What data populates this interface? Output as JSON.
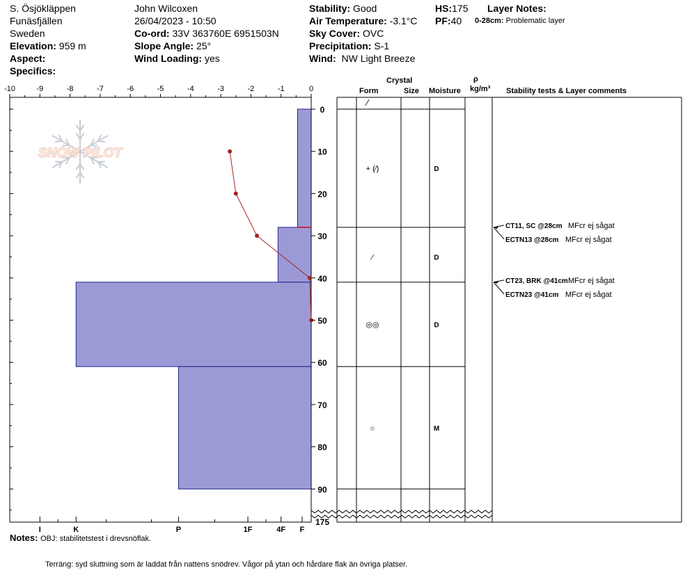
{
  "header": {
    "location": "S. Ösjökläppen",
    "area": "Funäsfjällen",
    "country": "Sweden",
    "elevation_label": "Elevation:",
    "elevation_value": "959 m",
    "aspect_label": "Aspect:",
    "specifics_label": "Specifics:",
    "observer": "John Wilcoxen",
    "datetime": "26/04/2023 - 10:50",
    "coord_label": "Co-ord:",
    "coord_value": "33V 363760E 6951503N",
    "slope_label": "Slope Angle:",
    "slope_value": "25°",
    "wind_loading_label": "Wind Loading:",
    "wind_loading_value": "yes",
    "stability_label": "Stability:",
    "stability_value": "Good",
    "air_temp_label": "Air Temperature:",
    "air_temp_value": "-3.1°C",
    "sky_label": "Sky Cover:",
    "sky_value": "OVC",
    "precip_label": "Precipitation:",
    "precip_value": "S-1",
    "wind_label": "Wind:",
    "wind_value": "NW Light Breeze",
    "hs_label": "HS:",
    "hs_value": "175",
    "pf_label": "PF:",
    "pf_value": "40",
    "layer_notes_label": "Layer Notes:",
    "layer_note_range": "0-28cm:",
    "layer_note_text": "Problematic layer"
  },
  "logo_text": "SNOW PILOT",
  "columns": {
    "crystal": "Crystal",
    "form": "Form",
    "size": "Size",
    "moisture": "Moisture",
    "rho": "ρ",
    "density_unit": "kg/m³",
    "stability": "Stability tests & Layer comments"
  },
  "notes": {
    "label": "Notes:",
    "line1": "OBJ: stabilitetstest i drevsnöflak.",
    "line2": "Terräng: syd sluttning som är laddat från nattens snödrev. Vågor på ytan och hårdare flak än övriga platser."
  },
  "chart_data": {
    "type": "snow-profile",
    "temp_axis": {
      "min": -10,
      "max": 0,
      "ticks": [
        "-10",
        "-9",
        "-8",
        "-7",
        "-6",
        "-5",
        "-4",
        "-3",
        "-2",
        "-1",
        "0"
      ]
    },
    "depth_axis": {
      "min": 0,
      "max": 90,
      "ticks": [
        "0",
        "10",
        "20",
        "30",
        "40",
        "50",
        "60",
        "70",
        "80",
        "90"
      ],
      "break_label": "175"
    },
    "hardness_axis": {
      "labels": [
        "I",
        "K",
        "P",
        "1F",
        "4F",
        "F"
      ],
      "values": [
        9,
        7.8,
        4.4,
        2.1,
        1.0,
        0.3
      ]
    },
    "temperature_profile": [
      {
        "depth": 10,
        "temp": -2.7
      },
      {
        "depth": 20,
        "temp": -2.5
      },
      {
        "depth": 30,
        "temp": -1.8
      },
      {
        "depth": 40,
        "temp": -0.05
      },
      {
        "depth": 50,
        "temp": 0.0
      }
    ],
    "hardness_layers": [
      {
        "top": 0,
        "bottom": 28,
        "hardness": 0.45
      },
      {
        "top": 28,
        "bottom": 41,
        "hardness": 1.1
      },
      {
        "top": 41,
        "bottom": 61,
        "hardness": 7.8
      },
      {
        "top": 61,
        "bottom": 90,
        "hardness": 4.4
      }
    ],
    "layer_boundaries": [
      28,
      41,
      61,
      90
    ],
    "crystal_rows": [
      {
        "depth": 14,
        "form": "+ (⁄)",
        "moisture": "D"
      },
      {
        "depth": 35,
        "form": "⁄",
        "moisture": "D"
      },
      {
        "depth": 51,
        "form": "◎◎",
        "moisture": "D"
      },
      {
        "depth": 75.5,
        "form": "○",
        "moisture": "M"
      }
    ],
    "top_form": "⁄",
    "stability_tests": [
      {
        "depth": 28,
        "test": "CT11, SC @28cm",
        "comment": "MFcr ej sågat"
      },
      {
        "depth": 28,
        "test": "ECTN13 @28cm",
        "comment": "MFcr ej sågat"
      },
      {
        "depth": 41,
        "test": "CT23, BRK @41cm",
        "comment": "MFcr ej sågat"
      },
      {
        "depth": 41,
        "test": "ECTN23 @41cm",
        "comment": "MFcr ej sågat"
      }
    ],
    "colors": {
      "layer_fill": "#9c9ad6",
      "layer_stroke": "#22228c",
      "temp_line": "#a52424",
      "pf_line": "#cc1111"
    }
  }
}
